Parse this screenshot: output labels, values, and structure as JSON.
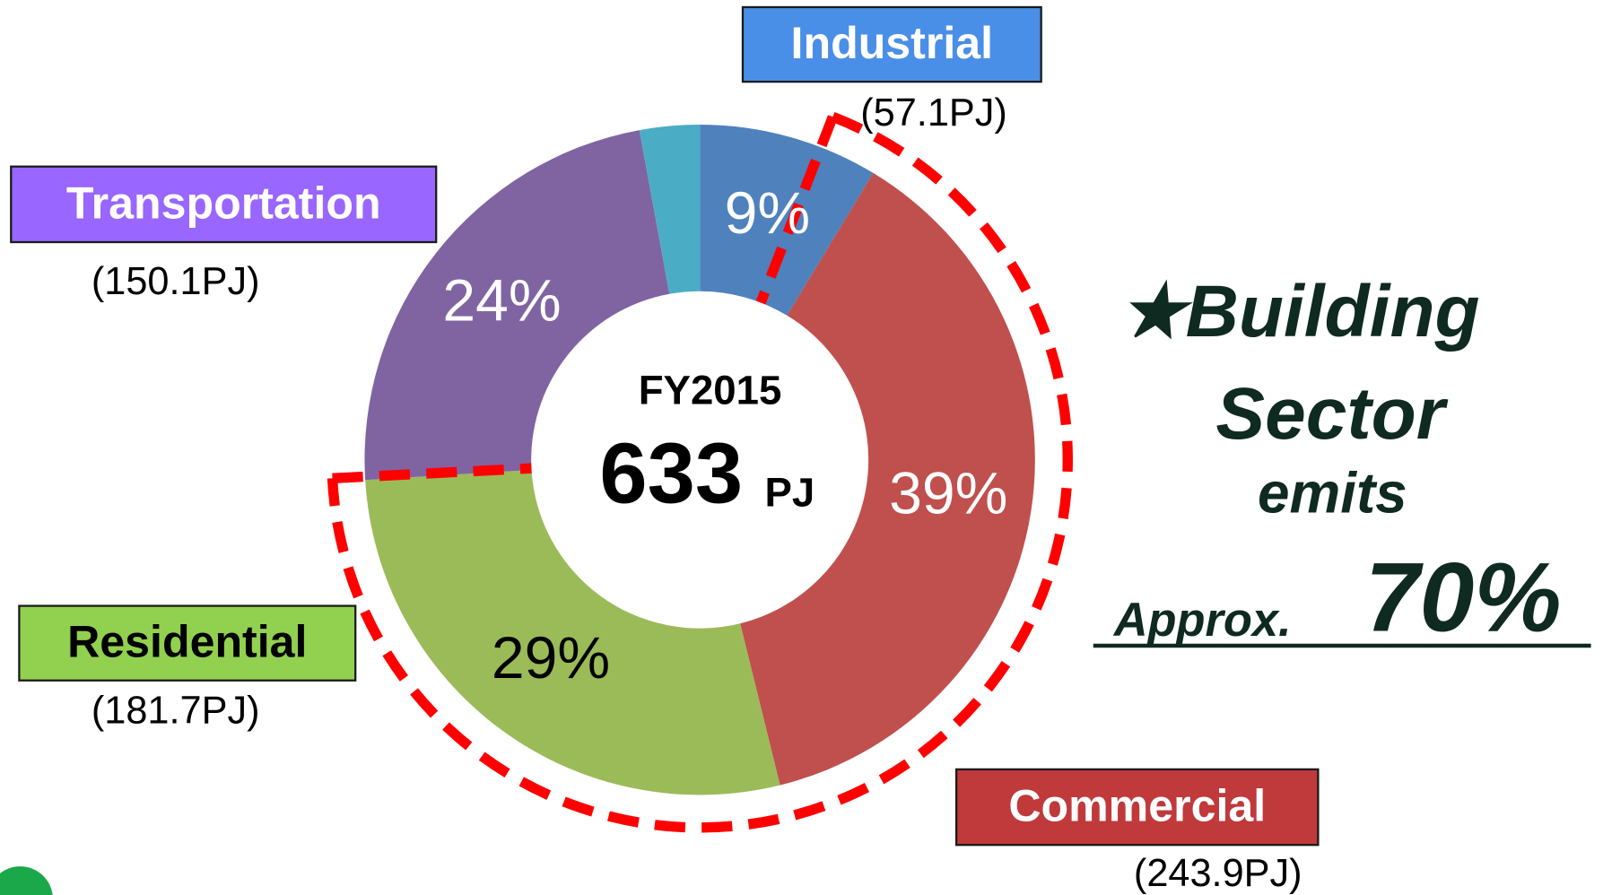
{
  "chart_data": {
    "type": "donut",
    "categories": [
      "Industrial",
      "Commercial",
      "Residential",
      "Transportation",
      null
    ],
    "values": [
      9,
      39,
      29,
      24,
      3
    ],
    "value_labels": [
      "9%",
      "39%",
      "29%",
      "24%",
      null
    ],
    "colors": [
      "#4f81bd",
      "#c0504d",
      "#9bbb59",
      "#8064a2",
      "#4bacc6"
    ],
    "value_label_colors": [
      "#ffffff",
      "#ffffff",
      "#000000",
      "#ffffff",
      null
    ],
    "legend_colors": [
      "#4a8fe7",
      "#c0393b",
      "#92d050",
      "#9966ff",
      null
    ],
    "legend_text_colors": [
      "#ffffff",
      "#ffffff",
      "#000000",
      "#ffffff",
      null
    ],
    "amounts": [
      "(57.1PJ)",
      "(243.9PJ)",
      "(181.7PJ)",
      "(150.1PJ)",
      null
    ],
    "center_title": "FY2015",
    "center_total": "633",
    "center_unit": "PJ",
    "annotations": [
      "★Building",
      "Sector",
      "emits",
      "Approx.",
      "70%"
    ]
  }
}
